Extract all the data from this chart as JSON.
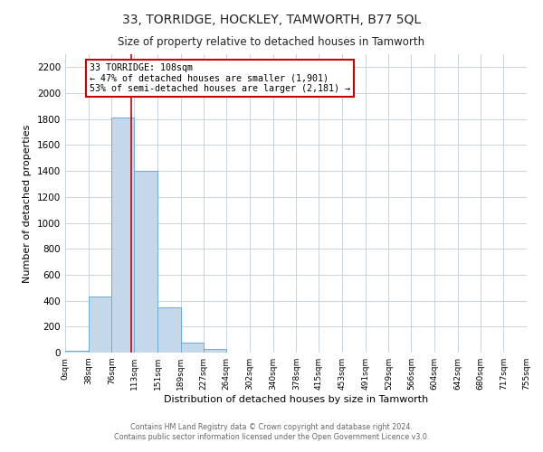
{
  "title": "33, TORRIDGE, HOCKLEY, TAMWORTH, B77 5QL",
  "subtitle": "Size of property relative to detached houses in Tamworth",
  "xlabel": "Distribution of detached houses by size in Tamworth",
  "ylabel": "Number of detached properties",
  "bar_color": "#c5d8ea",
  "bar_edge_color": "#6aadd5",
  "background_color": "#ffffff",
  "grid_color": "#c8d4de",
  "annotation_text": "33 TORRIDGE: 108sqm\n← 47% of detached houses are smaller (1,901)\n53% of semi-detached houses are larger (2,181) →",
  "annotation_box_facecolor": "#ffffff",
  "annotation_box_edgecolor": "#cc0000",
  "vline_x": 108,
  "vline_color": "#cc0000",
  "bin_edges": [
    0,
    38,
    76,
    113,
    151,
    189,
    227,
    264,
    302,
    340,
    378,
    415,
    453,
    491,
    529,
    566,
    604,
    642,
    680,
    717,
    755
  ],
  "bin_heights": [
    15,
    430,
    1810,
    1400,
    350,
    75,
    25,
    0,
    0,
    0,
    0,
    0,
    0,
    0,
    0,
    0,
    0,
    0,
    0,
    0
  ],
  "ylim": [
    0,
    2300
  ],
  "yticks": [
    0,
    200,
    400,
    600,
    800,
    1000,
    1200,
    1400,
    1600,
    1800,
    2000,
    2200
  ],
  "footer_line1": "Contains HM Land Registry data © Crown copyright and database right 2024.",
  "footer_line2": "Contains public sector information licensed under the Open Government Licence v3.0."
}
